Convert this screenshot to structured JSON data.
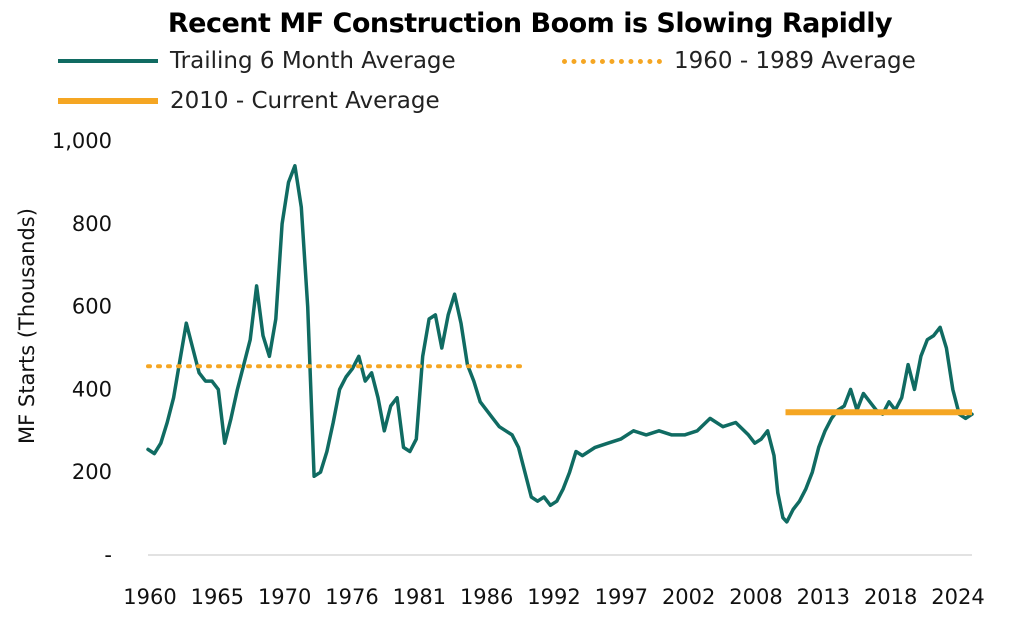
{
  "chart_data": {
    "type": "line",
    "title": "Recent MF Construction Boom is Slowing Rapidly",
    "ylabel": "MF Starts (Thousands)",
    "xlabel": "",
    "ylim": [
      0,
      1000
    ],
    "xlim": [
      1960,
      2024.5
    ],
    "yticks": [
      {
        "value": 0,
        "label": "-"
      },
      {
        "value": 200,
        "label": "200"
      },
      {
        "value": 400,
        "label": "400"
      },
      {
        "value": 600,
        "label": "600"
      },
      {
        "value": 800,
        "label": "800"
      },
      {
        "value": 1000,
        "label": "1,000"
      }
    ],
    "xticks": [
      "1960",
      "1965",
      "1970",
      "1976",
      "1981",
      "1986",
      "1992",
      "1997",
      "2002",
      "2008",
      "2013",
      "2018",
      "2024"
    ],
    "grid": false,
    "legend_position": "top",
    "colors": {
      "trailing": "#106b62",
      "reference": "#f5a623"
    },
    "series": [
      {
        "name": "Trailing 6 Month Average",
        "style": "solid",
        "x": [
          1960,
          1960.5,
          1961,
          1961.5,
          1962,
          1962.5,
          1963,
          1963.5,
          1964,
          1964.5,
          1965,
          1965.5,
          1966,
          1966.5,
          1967,
          1967.5,
          1968,
          1968.5,
          1969,
          1969.5,
          1970,
          1970.5,
          1971,
          1971.5,
          1972,
          1972.5,
          1973,
          1973.5,
          1974,
          1974.5,
          1975,
          1975.5,
          1976,
          1976.5,
          1977,
          1977.5,
          1978,
          1978.5,
          1979,
          1979.5,
          1980,
          1980.5,
          1981,
          1981.5,
          1982,
          1982.5,
          1983,
          1983.5,
          1984,
          1984.5,
          1985,
          1985.5,
          1986,
          1986.5,
          1987,
          1987.5,
          1988,
          1988.5,
          1989,
          1989.5,
          1990,
          1990.5,
          1991,
          1991.5,
          1992,
          1992.5,
          1993,
          1993.5,
          1994,
          1995,
          1996,
          1997,
          1998,
          1999,
          2000,
          2001,
          2002,
          2003,
          2004,
          2005,
          2006,
          2007,
          2007.5,
          2008,
          2008.5,
          2009,
          2009.3,
          2009.7,
          2010,
          2010.5,
          2011,
          2011.5,
          2012,
          2012.5,
          2013,
          2013.5,
          2014,
          2014.5,
          2015,
          2015.5,
          2016,
          2016.5,
          2017,
          2017.5,
          2018,
          2018.5,
          2019,
          2019.5,
          2020,
          2020.5,
          2021,
          2021.5,
          2022,
          2022.5,
          2023,
          2023.5,
          2024,
          2024.5
        ],
        "values": [
          255,
          245,
          270,
          320,
          380,
          470,
          560,
          500,
          440,
          420,
          420,
          400,
          270,
          330,
          400,
          460,
          520,
          650,
          530,
          480,
          570,
          800,
          900,
          940,
          840,
          600,
          190,
          200,
          250,
          320,
          400,
          430,
          450,
          480,
          420,
          440,
          380,
          300,
          360,
          380,
          260,
          250,
          280,
          480,
          570,
          580,
          500,
          580,
          630,
          560,
          460,
          420,
          370,
          350,
          330,
          310,
          300,
          290,
          260,
          200,
          140,
          130,
          140,
          120,
          130,
          160,
          200,
          250,
          240,
          260,
          270,
          280,
          300,
          290,
          300,
          290,
          290,
          300,
          330,
          310,
          320,
          290,
          270,
          280,
          300,
          240,
          150,
          90,
          80,
          110,
          130,
          160,
          200,
          260,
          300,
          330,
          350,
          360,
          400,
          350,
          390,
          370,
          350,
          340,
          370,
          350,
          380,
          460,
          400,
          480,
          520,
          530,
          550,
          500,
          400,
          340,
          330,
          340
        ]
      },
      {
        "name": "1960 - 1989 Average",
        "style": "dotted",
        "x": [
          1960,
          1989.2
        ],
        "values": [
          456,
          456
        ]
      },
      {
        "name": "2010 - Current Average",
        "style": "solid-thick",
        "x": [
          2009.9,
          2024.5
        ],
        "values": [
          345,
          345
        ]
      }
    ]
  }
}
